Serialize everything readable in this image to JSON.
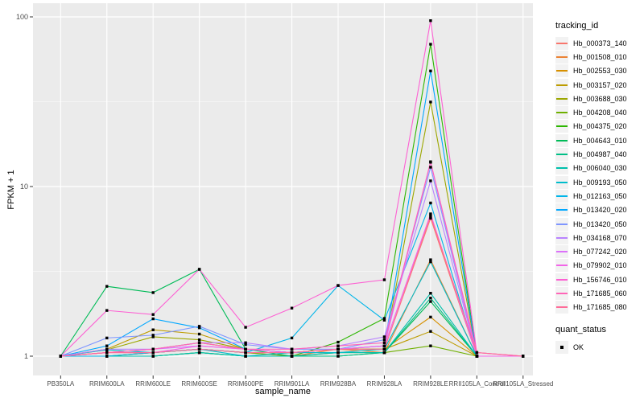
{
  "figure": {
    "background": "#FFFFFF",
    "panel_background": "#EBEBEB",
    "grid_color": "#FFFFFF",
    "tick_color": "#333333",
    "tick_label_color": "#4D4D4D",
    "axis_title_color": "#000000",
    "legend_key_background": "#F2F2F2"
  },
  "axes": {
    "x_title": "sample_name",
    "y_title": "FPKM + 1"
  },
  "legend": {
    "tracking_title": "tracking_id",
    "quant_title": "quant_status",
    "quant_items": [
      {
        "label": "OK",
        "marker": "black-square"
      }
    ]
  },
  "chart_data": {
    "type": "line",
    "title": "",
    "xlabel": "sample_name",
    "ylabel": "FPKM + 1",
    "y_scale": "log10",
    "y_ticks": [
      1,
      10,
      100
    ],
    "y_minor_ticks": [
      3.162,
      31.62
    ],
    "ylim": [
      0.82,
      120
    ],
    "grid": true,
    "legend_position": "right",
    "point_marker": {
      "shape": "square",
      "color": "#000000"
    },
    "categories": [
      "PB350LA",
      "RRIM600LA",
      "RRIM600LE",
      "RRIM600SE",
      "RRIM600PE",
      "RRIM901LA",
      "RRIM928BA",
      "RRIM928LA",
      "RRIM928LE",
      "RRII105LA_Control",
      "RRII105LA_Stressed"
    ],
    "series": [
      {
        "name": "Hb_000373_140",
        "color": "#F8766D",
        "values": [
          1,
          1.05,
          1.05,
          1.1,
          1.05,
          1.05,
          1.05,
          1.1,
          6.5,
          1,
          1
        ]
      },
      {
        "name": "Hb_001508_010",
        "color": "#EB8335",
        "values": [
          1,
          1,
          1.05,
          1.1,
          1.05,
          1,
          1.1,
          1.05,
          3.7,
          1,
          1
        ]
      },
      {
        "name": "Hb_002553_030",
        "color": "#D79000",
        "values": [
          1,
          1.05,
          1.1,
          1.2,
          1.1,
          1.05,
          1.1,
          1.1,
          1.7,
          1,
          1
        ]
      },
      {
        "name": "Hb_003157_020",
        "color": "#BD9C00",
        "values": [
          1,
          1.1,
          1.43,
          1.35,
          1.1,
          1.05,
          1.1,
          1.1,
          1.4,
          1,
          1
        ]
      },
      {
        "name": "Hb_003688_030",
        "color": "#9CA700",
        "values": [
          1,
          1.09,
          1.3,
          1.25,
          1.1,
          1.05,
          1.1,
          1.1,
          31.5,
          1,
          1
        ]
      },
      {
        "name": "Hb_004208_040",
        "color": "#6FB000",
        "values": [
          1,
          1,
          1.05,
          1.1,
          1.05,
          1,
          1.05,
          1.05,
          1.15,
          1,
          1
        ]
      },
      {
        "name": "Hb_004375_020",
        "color": "#2CB600",
        "values": [
          1,
          1,
          1,
          1.05,
          1,
          1,
          1.21,
          1.67,
          69,
          1,
          1
        ]
      },
      {
        "name": "Hb_004643_010",
        "color": "#00BB57",
        "values": [
          1,
          2.58,
          2.37,
          3.25,
          1.1,
          1,
          1,
          1.05,
          2.1,
          1,
          1
        ]
      },
      {
        "name": "Hb_004987_040",
        "color": "#00BF86",
        "values": [
          1,
          1,
          1,
          1.05,
          1,
          1,
          1,
          1.05,
          2.2,
          1,
          1
        ]
      },
      {
        "name": "Hb_006040_030",
        "color": "#00C0AC",
        "values": [
          1,
          1,
          1,
          1.05,
          1,
          1,
          1.05,
          1.05,
          2.35,
          1,
          1
        ]
      },
      {
        "name": "Hb_009193_050",
        "color": "#00BDCC",
        "values": [
          1,
          1.09,
          1.05,
          1.1,
          1,
          1.05,
          1.05,
          1.1,
          3.6,
          1,
          1
        ]
      },
      {
        "name": "Hb_012163_050",
        "color": "#00B5E9",
        "values": [
          1,
          1,
          1.05,
          1.1,
          1.05,
          1.28,
          2.61,
          1.63,
          8,
          1,
          1
        ]
      },
      {
        "name": "Hb_013420_020",
        "color": "#00A7FF",
        "values": [
          1,
          1.15,
          1.66,
          1.47,
          1.1,
          1.05,
          1.1,
          1.15,
          48,
          1,
          1
        ]
      },
      {
        "name": "Hb_013420_050",
        "color": "#7F96FF",
        "values": [
          1,
          1.28,
          1.33,
          1.5,
          1.17,
          1.1,
          1.1,
          1.25,
          13,
          1,
          1
        ]
      },
      {
        "name": "Hb_034168_070",
        "color": "#B983FF",
        "values": [
          1,
          1.1,
          1.1,
          1.2,
          1.2,
          1.1,
          1.15,
          1.3,
          10.8,
          1,
          1
        ]
      },
      {
        "name": "Hb_077242_020",
        "color": "#DC71FA",
        "values": [
          1,
          1.05,
          1.1,
          1.15,
          1.1,
          1.05,
          1.1,
          1.15,
          13.9,
          1,
          1
        ]
      },
      {
        "name": "Hb_079902_010",
        "color": "#F265E8",
        "values": [
          1,
          1.05,
          1.05,
          1.15,
          1.1,
          1.05,
          1.1,
          1.15,
          6.9,
          1,
          1
        ]
      },
      {
        "name": "Hb_156746_010",
        "color": "#FD61D3",
        "values": [
          1,
          1.86,
          1.76,
          3.25,
          1.48,
          1.92,
          2.61,
          2.82,
          95,
          1.05,
          1
        ]
      },
      {
        "name": "Hb_171685_060",
        "color": "#FF65B8",
        "values": [
          1,
          1.05,
          1.1,
          1.2,
          1.1,
          1.1,
          1.15,
          1.2,
          14,
          1.05,
          1
        ]
      },
      {
        "name": "Hb_171685_080",
        "color": "#FF6C99",
        "values": [
          1,
          1.05,
          1.05,
          1.1,
          1.05,
          1.05,
          1.1,
          1.1,
          6.7,
          1.05,
          1
        ]
      }
    ]
  }
}
